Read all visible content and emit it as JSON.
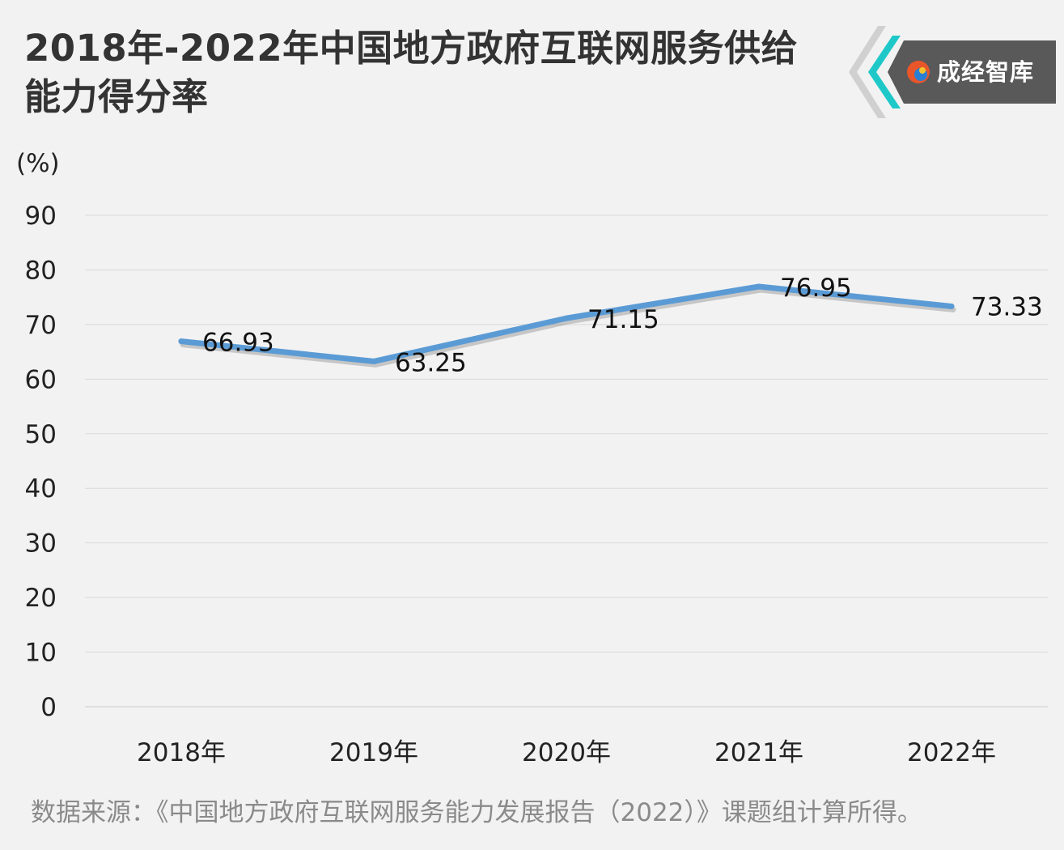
{
  "header": {
    "title": "2018年-2022年中国地方政府互联网服务供给能力得分率",
    "brand": "成经智库"
  },
  "colors": {
    "line": "#5b9bd5",
    "grid": "#d9d9d9",
    "accent": "#1ec8c8",
    "logo_box": "#595959"
  },
  "footer": {
    "source": "数据来源：《中国地方政府互联网服务能力发展报告（2022）》课题组计算所得。"
  },
  "chart_data": {
    "type": "line",
    "title": "2018年-2022年中国地方政府互联网服务供给能力得分率",
    "ylabel": "(%)",
    "xlabel": "",
    "categories": [
      "2018年",
      "2019年",
      "2020年",
      "2021年",
      "2022年"
    ],
    "series": [
      {
        "name": "得分率",
        "values": [
          66.93,
          63.25,
          71.15,
          76.95,
          73.33
        ]
      }
    ],
    "value_labels": [
      "66.93",
      "63.25",
      "71.15",
      "76.95",
      "73.33"
    ],
    "ylim": [
      0,
      90
    ],
    "yticks": [
      0,
      10,
      20,
      30,
      40,
      50,
      60,
      70,
      80,
      90
    ],
    "grid": true,
    "legend": "none"
  }
}
